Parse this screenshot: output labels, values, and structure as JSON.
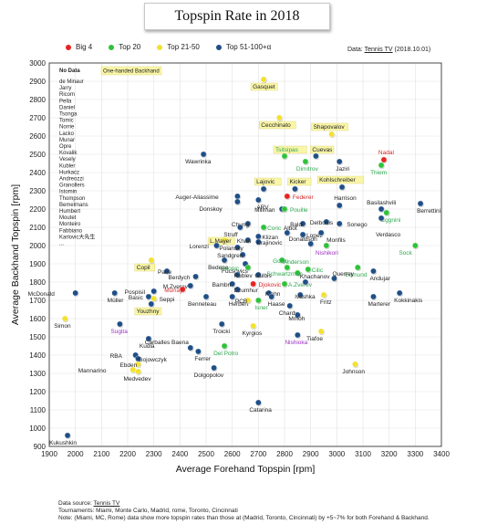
{
  "chart_data": {
    "type": "scatter",
    "title": "Topspin Rate in 2018",
    "xlabel": "Average Forehand Topspin [rpm]",
    "ylabel": "Average Backhand Topspin [rpm]",
    "xlim": [
      1900,
      3400
    ],
    "ylim": [
      900,
      3000
    ],
    "xticks": [
      1900,
      2000,
      2100,
      2200,
      2300,
      2400,
      2500,
      2600,
      2700,
      2800,
      2900,
      3000,
      3100,
      3200,
      3300,
      3400
    ],
    "yticks": [
      900,
      1000,
      1100,
      1200,
      1300,
      1400,
      1500,
      1600,
      1700,
      1800,
      1900,
      2000,
      2100,
      2200,
      2300,
      2400,
      2500,
      2600,
      2700,
      2800,
      2900,
      3000
    ],
    "grid": true,
    "legend_position": "top",
    "categories": [
      {
        "key": "big4",
        "name": "Big 4",
        "color": "#e8231f"
      },
      {
        "key": "top20",
        "name": "Top 20",
        "color": "#2fc23a"
      },
      {
        "key": "top21_50",
        "name": "Top 21-50",
        "color": "#f2e131"
      },
      {
        "key": "top51",
        "name": "Top 51-100+α",
        "color": "#1f4f86"
      }
    ],
    "points": [
      {
        "name": "Gasquet",
        "x": 2720,
        "y": 2910,
        "cat": "top21_50",
        "label_dx": -12,
        "label_dy": 10,
        "box": true
      },
      {
        "name": "Cecchinato",
        "x": 2780,
        "y": 2700,
        "cat": "top21_50",
        "label_dx": -20,
        "label_dy": 10,
        "box": true
      },
      {
        "name": "Shapovalov",
        "x": 2980,
        "y": 2610,
        "cat": "top21_50",
        "label_dx": -20,
        "label_dy": -6,
        "box": true
      },
      {
        "name": "Tsitsipas",
        "x": 2800,
        "y": 2490,
        "cat": "top20",
        "label_dx": -10,
        "label_dy": -5,
        "box": true
      },
      {
        "name": "Cuevas",
        "x": 2920,
        "y": 2490,
        "cat": "top51",
        "label_dx": -4,
        "label_dy": -5,
        "box": true
      },
      {
        "name": "Nadal",
        "x": 3180,
        "y": 2470,
        "cat": "big4",
        "label_dx": -6,
        "label_dy": -6
      },
      {
        "name": "Dimitrov",
        "x": 2880,
        "y": 2460,
        "cat": "top20",
        "label_dx": -10,
        "label_dy": 10
      },
      {
        "name": "Jaziri",
        "x": 3010,
        "y": 2460,
        "cat": "top51",
        "label_dx": -4,
        "label_dy": 10
      },
      {
        "name": "Thiem",
        "x": 3170,
        "y": 2440,
        "cat": "top20",
        "label_dx": -12,
        "label_dy": 10
      },
      {
        "name": "Wawrinka",
        "x": 2490,
        "y": 2500,
        "cat": "top51",
        "label_dx": -20,
        "label_dy": 10
      },
      {
        "name": "Lajovic",
        "x": 2720,
        "y": 2310,
        "cat": "top51",
        "label_dx": -8,
        "label_dy": -6,
        "box": true
      },
      {
        "name": "Kicker",
        "x": 2840,
        "y": 2310,
        "cat": "top51",
        "label_dx": -6,
        "label_dy": -6,
        "box": true
      },
      {
        "name": "Kohlschreiber",
        "x": 3020,
        "y": 2320,
        "cat": "top51",
        "label_dx": -25,
        "label_dy": -6,
        "box": true
      },
      {
        "name": "Federer",
        "x": 2810,
        "y": 2270,
        "cat": "big4",
        "label_dx": 6,
        "label_dy": 3
      },
      {
        "name": "Auger-Aliassime",
        "x": 2620,
        "y": 2270,
        "cat": "top51",
        "label_dx": -68,
        "label_dy": 3
      },
      {
        "name": "ARV",
        "x": 2700,
        "y": 2250,
        "cat": "top51",
        "label_dx": -2,
        "label_dy": 10
      },
      {
        "name": "Millman",
        "x": 2790,
        "y": 2200,
        "cat": "top51",
        "label_dx": -30,
        "label_dy": 3
      },
      {
        "name": "Pouille",
        "x": 2800,
        "y": 2200,
        "cat": "top20",
        "label_dx": 6,
        "label_dy": 3
      },
      {
        "name": "Donskoy",
        "x": 2620,
        "y": 2240,
        "cat": "top51",
        "label_dx": -42,
        "label_dy": 10
      },
      {
        "name": "Basilashvili",
        "x": 3170,
        "y": 2200,
        "cat": "top51",
        "label_dx": -16,
        "label_dy": -5
      },
      {
        "name": "Berrettini",
        "x": 3320,
        "y": 2230,
        "cat": "top51",
        "label_dx": -4,
        "label_dy": 10
      },
      {
        "name": "Harrison",
        "x": 3010,
        "y": 2220,
        "cat": "top51",
        "label_dx": -6,
        "label_dy": -6
      },
      {
        "name": "Eggnini",
        "x": 3190,
        "y": 2180,
        "cat": "top20",
        "label_dx": -6,
        "label_dy": 10
      },
      {
        "name": "Baldi",
        "x": 2870,
        "y": 2120,
        "cat": "top51",
        "label_dx": -14,
        "label_dy": 3
      },
      {
        "name": "Delbonis",
        "x": 2960,
        "y": 2130,
        "cat": "top51",
        "label_dx": -18,
        "label_dy": 3
      },
      {
        "name": "Sonego",
        "x": 3010,
        "y": 2120,
        "cat": "top51",
        "label_dx": 8,
        "label_dy": 3
      },
      {
        "name": "Verdasco",
        "x": 3170,
        "y": 2150,
        "cat": "top51",
        "label_dx": -6,
        "label_dy": 20
      },
      {
        "name": "Chung",
        "x": 2660,
        "y": 2120,
        "cat": "top51",
        "label_dx": -18,
        "label_dy": 3
      },
      {
        "name": "Struff",
        "x": 2630,
        "y": 2100,
        "cat": "top51",
        "label_dx": -18,
        "label_dy": 10
      },
      {
        "name": "Coric",
        "x": 2720,
        "y": 2100,
        "cat": "top20",
        "label_dx": 4,
        "label_dy": 3
      },
      {
        "name": "Albot",
        "x": 2810,
        "y": 2070,
        "cat": "top51",
        "label_dx": -4,
        "label_dy": -3
      },
      {
        "name": "Lopez",
        "x": 2870,
        "y": 2060,
        "cat": "top51",
        "label_dx": 4,
        "label_dy": 3
      },
      {
        "name": "Monfils",
        "x": 2940,
        "y": 2070,
        "cat": "top51",
        "label_dx": 6,
        "label_dy": 10
      },
      {
        "name": "L.Mayer",
        "x": 2570,
        "y": 2030,
        "cat": "top21_50",
        "label_dx": -16,
        "label_dy": 3,
        "box": true
      },
      {
        "name": "Khan",
        "x": 2660,
        "y": 2030,
        "cat": "top51",
        "label_dx": -12,
        "label_dy": 3
      },
      {
        "name": "Klizan",
        "x": 2700,
        "y": 2050,
        "cat": "top51",
        "label_dx": 4,
        "label_dy": 3
      },
      {
        "name": "Krajinovic",
        "x": 2700,
        "y": 2020,
        "cat": "top51",
        "label_dx": -2,
        "label_dy": 3
      },
      {
        "name": "Donaldson",
        "x": 2900,
        "y": 2010,
        "cat": "top51",
        "label_dx": -24,
        "label_dy": -3
      },
      {
        "name": "Nishikori",
        "x": 2960,
        "y": 2000,
        "cat": "top20",
        "label_dx": -12,
        "label_dy": 10
      },
      {
        "name": "Sock",
        "x": 3300,
        "y": 2000,
        "cat": "top20",
        "label_dx": -18,
        "label_dy": 10
      },
      {
        "name": "Lorenzi",
        "x": 2540,
        "y": 2000,
        "cat": "top51",
        "label_dx": -30,
        "label_dy": 3
      },
      {
        "name": "Polansky",
        "x": 2620,
        "y": 1990,
        "cat": "top51",
        "label_dx": -20,
        "label_dy": 3
      },
      {
        "name": "Sandgren",
        "x": 2640,
        "y": 1950,
        "cat": "top51",
        "label_dx": -28,
        "label_dy": 3
      },
      {
        "name": "Copil",
        "x": 2290,
        "y": 1920,
        "cat": "top21_50",
        "label_dx": -16,
        "label_dy": 10,
        "box": true
      },
      {
        "name": "Fucsovics",
        "x": 2650,
        "y": 1900,
        "cat": "top51",
        "label_dx": -26,
        "label_dy": 10
      },
      {
        "name": "Bedene",
        "x": 2570,
        "y": 1920,
        "cat": "top51",
        "label_dx": -18,
        "label_dy": 10
      },
      {
        "name": "Goffin",
        "x": 2790,
        "y": 1920,
        "cat": "top20",
        "label_dx": -10,
        "label_dy": 3
      },
      {
        "name": "Paire",
        "x": 2350,
        "y": 1860,
        "cat": "top51",
        "label_dx": -10,
        "label_dy": 3
      },
      {
        "name": "Raonic",
        "x": 2660,
        "y": 1880,
        "cat": "top20",
        "label_dx": -30,
        "label_dy": 3
      },
      {
        "name": "Anderson",
        "x": 2810,
        "y": 1880,
        "cat": "top20",
        "label_dx": -4,
        "label_dy": -4
      },
      {
        "name": "Schwartzman",
        "x": 2850,
        "y": 1850,
        "cat": "top20",
        "label_dx": -34,
        "label_dy": 3
      },
      {
        "name": "Cilic",
        "x": 2890,
        "y": 1870,
        "cat": "top20",
        "label_dx": 4,
        "label_dy": 3
      },
      {
        "name": "Edmund",
        "x": 3080,
        "y": 1880,
        "cat": "top20",
        "label_dx": -14,
        "label_dy": 10
      },
      {
        "name": "Andujar",
        "x": 3140,
        "y": 1860,
        "cat": "top51",
        "label_dx": -4,
        "label_dy": 10
      },
      {
        "name": "Berdych",
        "x": 2460,
        "y": 1830,
        "cat": "top51",
        "label_dx": -30,
        "label_dy": 3
      },
      {
        "name": "Rublev",
        "x": 2620,
        "y": 1840,
        "cat": "top51",
        "label_dx": -4,
        "label_dy": 3
      },
      {
        "name": "Gulbis",
        "x": 2700,
        "y": 1840,
        "cat": "top51",
        "label_dx": -4,
        "label_dy": 3
      },
      {
        "name": "Querrey",
        "x": 2990,
        "y": 1820,
        "cat": "top51",
        "label_dx": -2,
        "label_dy": -3
      },
      {
        "name": "Bambri",
        "x": 2600,
        "y": 1790,
        "cat": "top51",
        "label_dx": -22,
        "label_dy": 3
      },
      {
        "name": "Djokovic",
        "x": 2680,
        "y": 1790,
        "cat": "big4",
        "label_dx": 6,
        "label_dy": 3
      },
      {
        "name": "A.Zverev",
        "x": 2800,
        "y": 1790,
        "cat": "top20",
        "label_dx": 4,
        "label_dy": 3
      },
      {
        "name": "Khachanov",
        "x": 2880,
        "y": 1800,
        "cat": "top51",
        "label_dx": -6,
        "label_dy": -4
      },
      {
        "name": "M.Zverev",
        "x": 2440,
        "y": 1780,
        "cat": "top51",
        "label_dx": -30,
        "label_dy": 3
      },
      {
        "name": "Murray",
        "x": 2410,
        "y": 1760,
        "cat": "big4",
        "label_dx": -20,
        "label_dy": 3
      },
      {
        "name": "Dzumhur",
        "x": 2620,
        "y": 1760,
        "cat": "top51",
        "label_dx": -4,
        "label_dy": 3
      },
      {
        "name": "Klahn",
        "x": 2740,
        "y": 1740,
        "cat": "top51",
        "label_dx": -4,
        "label_dy": 3
      },
      {
        "name": "Pospisil",
        "x": 2300,
        "y": 1750,
        "cat": "top51",
        "label_dx": -32,
        "label_dy": 3
      },
      {
        "name": "Basic",
        "x": 2280,
        "y": 1720,
        "cat": "top51",
        "label_dx": -22,
        "label_dy": 3
      },
      {
        "name": "Seppi",
        "x": 2300,
        "y": 1710,
        "cat": "top21_50",
        "label_dx": 6,
        "label_dy": 3
      },
      {
        "name": "McDonald",
        "x": 2000,
        "y": 1740,
        "cat": "top51",
        "label_dx": -52,
        "label_dy": 3
      },
      {
        "name": "Müller",
        "x": 2150,
        "y": 1740,
        "cat": "top51",
        "label_dx": -8,
        "label_dy": 10
      },
      {
        "name": "Benneteau",
        "x": 2500,
        "y": 1720,
        "cat": "top51",
        "label_dx": -20,
        "label_dy": 10
      },
      {
        "name": "Herbert",
        "x": 2600,
        "y": 1720,
        "cat": "top51",
        "label_dx": -4,
        "label_dy": 10
      },
      {
        "name": "PCB",
        "x": 2660,
        "y": 1700,
        "cat": "top21_50",
        "label_dx": -14,
        "label_dy": 3
      },
      {
        "name": "Isner",
        "x": 2700,
        "y": 1700,
        "cat": "top20",
        "label_dx": -4,
        "label_dy": 10
      },
      {
        "name": "Haase",
        "x": 2750,
        "y": 1720,
        "cat": "top51",
        "label_dx": -4,
        "label_dy": 10
      },
      {
        "name": "Ivashka",
        "x": 2860,
        "y": 1730,
        "cat": "top51",
        "label_dx": -6,
        "label_dy": 4
      },
      {
        "name": "Fritz",
        "x": 2950,
        "y": 1730,
        "cat": "top21_50",
        "label_dx": -4,
        "label_dy": 10
      },
      {
        "name": "Marterer",
        "x": 3140,
        "y": 1720,
        "cat": "top51",
        "label_dx": -6,
        "label_dy": 10
      },
      {
        "name": "Kokkinakis",
        "x": 3240,
        "y": 1740,
        "cat": "top51",
        "label_dx": -6,
        "label_dy": 10
      },
      {
        "name": "Youzhny",
        "x": 2290,
        "y": 1680,
        "cat": "top51",
        "label_dx": -16,
        "label_dy": 10,
        "box": true
      },
      {
        "name": "Chardy",
        "x": 2820,
        "y": 1670,
        "cat": "top51",
        "label_dx": -12,
        "label_dy": 10
      },
      {
        "name": "Simon",
        "x": 1960,
        "y": 1600,
        "cat": "top21_50",
        "label_dx": -12,
        "label_dy": 10
      },
      {
        "name": "Mmoh",
        "x": 2850,
        "y": 1620,
        "cat": "top51",
        "label_dx": -10,
        "label_dy": 6
      },
      {
        "name": "Sugita",
        "x": 2170,
        "y": 1570,
        "cat": "top51",
        "label_dx": -10,
        "label_dy": 10
      },
      {
        "name": "Troicki",
        "x": 2560,
        "y": 1570,
        "cat": "top51",
        "label_dx": -10,
        "label_dy": 10
      },
      {
        "name": "Kyrgios",
        "x": 2680,
        "y": 1560,
        "cat": "top21_50",
        "label_dx": -12,
        "label_dy": 10
      },
      {
        "name": "Tiafoe",
        "x": 2940,
        "y": 1530,
        "cat": "top21_50",
        "label_dx": -16,
        "label_dy": 10
      },
      {
        "name": "Nishioka",
        "x": 2850,
        "y": 1510,
        "cat": "top51",
        "label_dx": -14,
        "label_dy": 10
      },
      {
        "name": "Kudla",
        "x": 2280,
        "y": 1490,
        "cat": "top51",
        "label_dx": -10,
        "label_dy": 10
      },
      {
        "name": "Carballes Baena",
        "x": 2440,
        "y": 1440,
        "cat": "top51",
        "label_dx": -50,
        "label_dy": -4
      },
      {
        "name": "Del Potro",
        "x": 2570,
        "y": 1450,
        "cat": "top20",
        "label_dx": -12,
        "label_dy": 10
      },
      {
        "name": "Ferrer",
        "x": 2470,
        "y": 1420,
        "cat": "top51",
        "label_dx": -4,
        "label_dy": 10
      },
      {
        "name": "RBA",
        "x": 2230,
        "y": 1400,
        "cat": "top51",
        "label_dx": -28,
        "label_dy": 3
      },
      {
        "name": "Gojowczyk",
        "x": 2240,
        "y": 1380,
        "cat": "top51",
        "label_dx": 0,
        "label_dy": 3
      },
      {
        "name": "Ebden",
        "x": 2240,
        "y": 1350,
        "cat": "top21_50",
        "label_dx": -20,
        "label_dy": 3
      },
      {
        "name": "Mannarino",
        "x": 2220,
        "y": 1320,
        "cat": "top21_50",
        "label_dx": -60,
        "label_dy": 3
      },
      {
        "name": "Medvedev",
        "x": 2240,
        "y": 1310,
        "cat": "top21_50",
        "label_dx": -16,
        "label_dy": 10
      },
      {
        "name": "Johnson",
        "x": 3070,
        "y": 1350,
        "cat": "top21_50",
        "label_dx": -14,
        "label_dy": 10
      },
      {
        "name": "Dolgopolov",
        "x": 2530,
        "y": 1330,
        "cat": "top51",
        "label_dx": -22,
        "label_dy": 10
      },
      {
        "name": "Catarina",
        "x": 2700,
        "y": 1140,
        "cat": "top51",
        "label_dx": -10,
        "label_dy": 10
      },
      {
        "name": "Kukushkin",
        "x": 1970,
        "y": 960,
        "cat": "top51",
        "label_dx": -20,
        "label_dy": 10
      }
    ],
    "no_data_title": "No Data",
    "no_data_players": [
      "de Minaur",
      "Jarry",
      "Ricom",
      "Pella",
      "Daniel",
      "Tsonga",
      "Tomic",
      "Norrie",
      "Lacko",
      "Munar",
      "Opre",
      "Kovalik",
      "Vesely",
      "Kubler",
      "Hurkacz",
      "Andreozzi",
      "Granollers",
      "Istomin",
      "Thompson",
      "Bemelmans",
      "Humbert",
      "Moutet",
      "Monteiro",
      "Fabbiano",
      "Karlovic大先生",
      "..."
    ],
    "one_handed_label": "One-handed Backhand"
  },
  "source_top": {
    "prefix": "Data: ",
    "name": "Tennis TV",
    "date": " (2018.10.01)"
  },
  "footer": {
    "line1_prefix": "Data source: ",
    "line1_link": "Tennis TV",
    "line2": "Tournaments: Miami, Monte Carlo, Madrid, rome, Toronto, Cincinnati",
    "line3": "Note: (Miami, MC, Rome) data show more topspin rates than those at (Madrid, Toronto, Cincinnati) by +5~7% for both Forehand & Backhand."
  }
}
